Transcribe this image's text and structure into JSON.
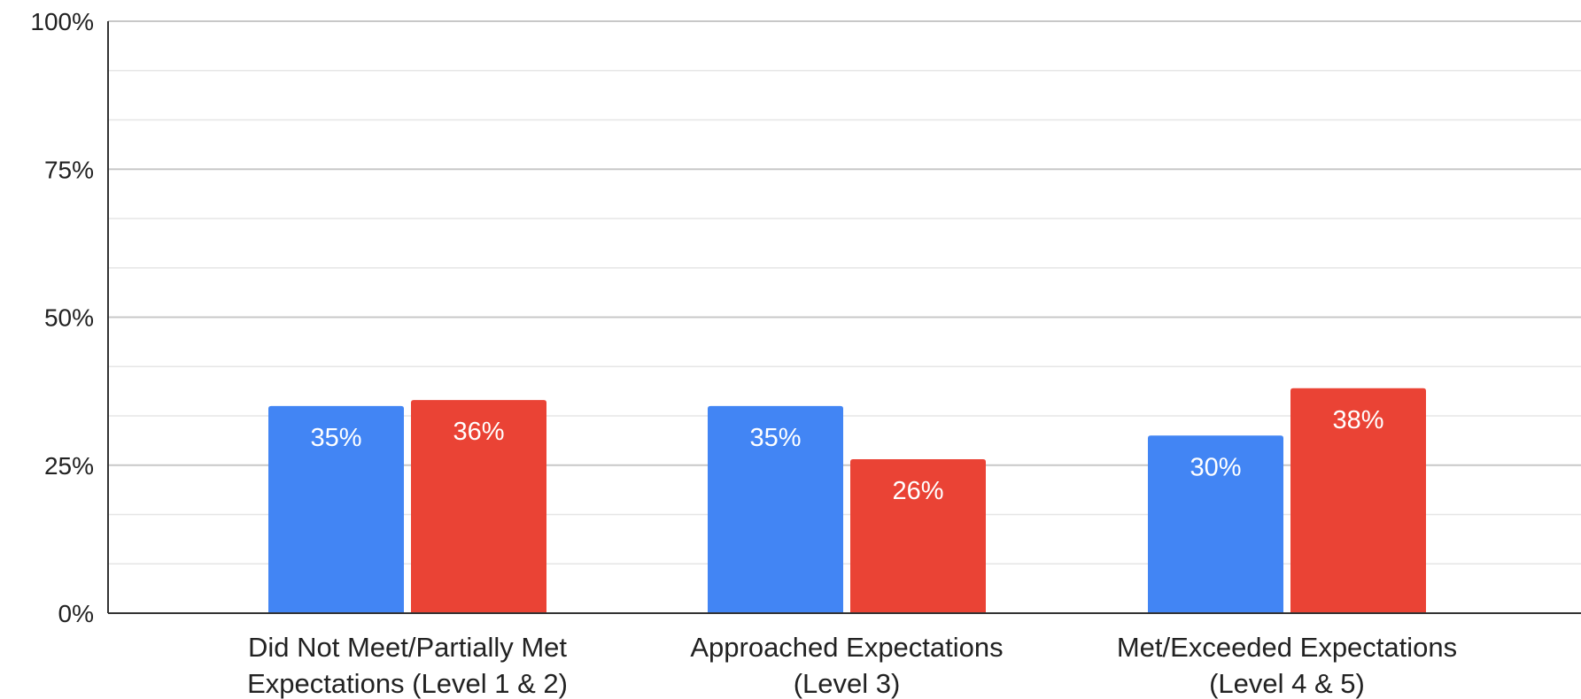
{
  "chart_data": {
    "type": "bar",
    "title": "",
    "xlabel": "",
    "ylabel": "",
    "ylim": [
      0,
      100
    ],
    "y_ticks": [
      "0%",
      "25%",
      "50%",
      "75%",
      "100%"
    ],
    "y_tick_values": [
      0,
      25,
      50,
      75,
      100
    ],
    "minor_grid_step": 8.333,
    "grid": true,
    "legend": "none",
    "categories": [
      [
        "Did Not Meet/Partially Met",
        "Expectations (Level 1 & 2)"
      ],
      [
        "Approached Expectations",
        "(Level 3)"
      ],
      [
        "Met/Exceeded Expectations",
        "(Level 4 & 5)"
      ]
    ],
    "series": [
      {
        "color": "#4285F4",
        "values": [
          35,
          35,
          30
        ],
        "labels": [
          "35%",
          "35%",
          "30%"
        ]
      },
      {
        "color": "#EA4335",
        "values": [
          36,
          26,
          38
        ],
        "labels": [
          "36%",
          "26%",
          "38%"
        ]
      }
    ]
  }
}
